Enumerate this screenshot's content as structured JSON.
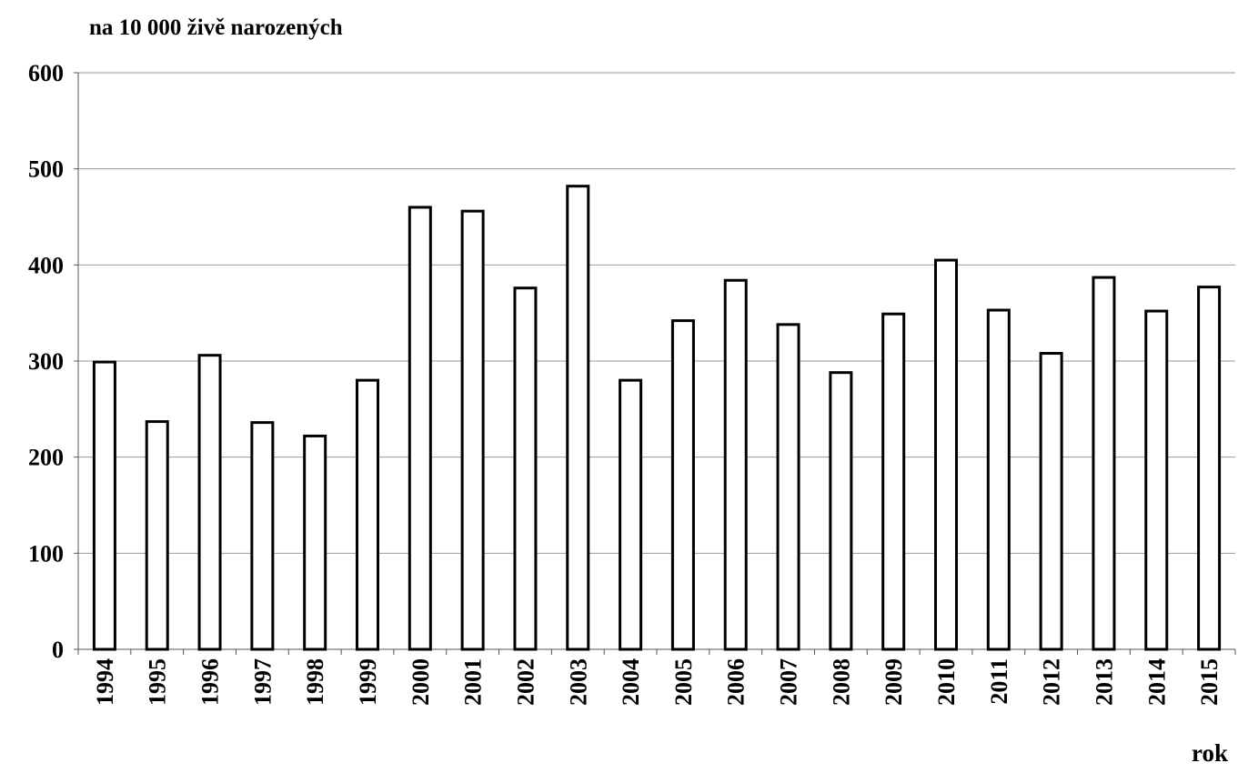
{
  "chart_data": {
    "type": "bar",
    "y_label": "na 10 000 živě narozených",
    "x_label": "rok",
    "categories": [
      "1994",
      "1995",
      "1996",
      "1997",
      "1998",
      "1999",
      "2000",
      "2001",
      "2002",
      "2003",
      "2004",
      "2005",
      "2006",
      "2007",
      "2008",
      "2009",
      "2010",
      "2011",
      "2012",
      "2013",
      "2014",
      "2015"
    ],
    "values": [
      299,
      237,
      306,
      236,
      222,
      280,
      460,
      456,
      376,
      482,
      280,
      342,
      384,
      338,
      288,
      349,
      405,
      353,
      308,
      387,
      352,
      377
    ],
    "color": "#ffffff",
    "ylim": [
      0,
      600
    ],
    "yticks": [
      0,
      100,
      200,
      300,
      400,
      500,
      600
    ],
    "grid": true
  }
}
